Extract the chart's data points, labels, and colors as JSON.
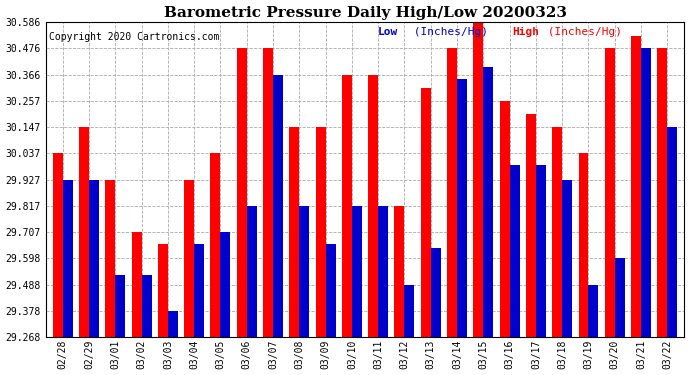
{
  "title": "Barometric Pressure Daily High/Low 20200323",
  "copyright": "Copyright 2020 Cartronics.com",
  "legend_low": "Low",
  "legend_high": "High",
  "legend_units": "(Inches/Hg)",
  "dates": [
    "02/28",
    "02/29",
    "03/01",
    "03/02",
    "03/03",
    "03/04",
    "03/05",
    "03/06",
    "03/07",
    "03/08",
    "03/09",
    "03/10",
    "03/11",
    "03/12",
    "03/13",
    "03/14",
    "03/15",
    "03/16",
    "03/17",
    "03/18",
    "03/19",
    "03/20",
    "03/21",
    "03/22"
  ],
  "high_values": [
    30.037,
    30.147,
    29.927,
    29.707,
    29.657,
    29.927,
    30.037,
    30.476,
    30.476,
    30.147,
    30.147,
    30.366,
    30.366,
    29.817,
    30.31,
    30.476,
    30.586,
    30.257,
    30.2,
    30.147,
    30.037,
    30.476,
    30.53,
    30.476
  ],
  "low_values": [
    29.927,
    29.927,
    29.53,
    29.53,
    29.378,
    29.657,
    29.707,
    29.817,
    30.366,
    29.817,
    29.657,
    29.817,
    29.817,
    29.488,
    29.64,
    30.35,
    30.4,
    29.987,
    29.987,
    29.927,
    29.488,
    29.598,
    30.476,
    30.147
  ],
  "ylim_min": 29.268,
  "ylim_max": 30.586,
  "bar_color_high": "#ff0000",
  "bar_color_low": "#0000cc",
  "background_color": "#ffffff",
  "grid_color": "#aaaaaa",
  "title_fontsize": 11,
  "copyright_fontsize": 7,
  "legend_fontsize": 8,
  "tick_fontsize": 7,
  "ytick_values": [
    29.268,
    29.378,
    29.488,
    29.598,
    29.707,
    29.817,
    29.927,
    30.037,
    30.147,
    30.257,
    30.366,
    30.476,
    30.586
  ]
}
